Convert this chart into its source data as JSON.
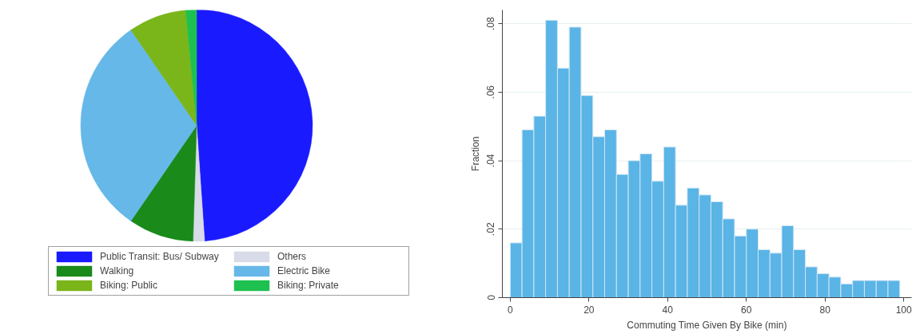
{
  "chart_data": [
    {
      "type": "pie",
      "categories": [
        "Public Transit: Bus/ Subway",
        "Others",
        "Walking",
        "Electric Bike",
        "Biking: Public",
        "Biking: Private"
      ],
      "values": [
        48.9,
        1.6,
        9.1,
        30.8,
        8.1,
        1.5
      ],
      "colors": [
        "#1a1aff",
        "#d8dbe8",
        "#1a8a1a",
        "#66b8e8",
        "#7ab51a",
        "#1ec050"
      ],
      "legend": "bottom"
    },
    {
      "type": "histogram",
      "xlabel": "Commuting Time Given By Bike (min)",
      "ylabel": "Fraction",
      "bins": [
        0,
        3,
        6,
        9,
        12,
        15,
        18,
        21,
        24,
        27,
        30,
        33,
        36,
        39,
        42,
        45,
        48,
        51,
        54,
        57,
        60,
        63,
        66,
        69,
        72,
        75,
        78,
        81,
        84,
        87,
        90,
        93,
        96,
        99
      ],
      "values": [
        0.016,
        0.049,
        0.053,
        0.081,
        0.067,
        0.079,
        0.059,
        0.047,
        0.049,
        0.036,
        0.04,
        0.042,
        0.034,
        0.044,
        0.027,
        0.032,
        0.03,
        0.028,
        0.023,
        0.018,
        0.02,
        0.014,
        0.013,
        0.021,
        0.014,
        0.009,
        0.007,
        0.006,
        0.004,
        0.005,
        0.005,
        0.005,
        0.005
      ],
      "color": "#5ab4e6",
      "xlim": [
        -2,
        102
      ],
      "ylim": [
        0,
        0.084
      ],
      "xticks": [
        0,
        20,
        40,
        60,
        80,
        100
      ],
      "yticks": [
        0,
        {
          "value": 0.02,
          "label": ".02"
        },
        {
          "value": 0.04,
          "label": ".04"
        },
        {
          "value": 0.06,
          "label": ".06"
        },
        {
          "value": 0.08,
          "label": ".08"
        }
      ],
      "grid": "y"
    }
  ]
}
